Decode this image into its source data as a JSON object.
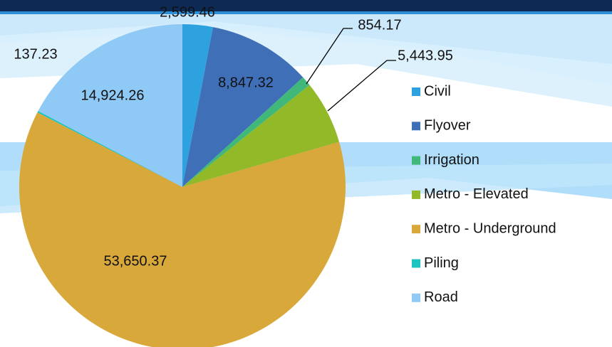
{
  "chart_data": {
    "type": "pie",
    "categories": [
      "Civil",
      "Flyover",
      "Irrigation",
      "Metro - Elevated",
      "Metro - Underground",
      "Piling",
      "Road"
    ],
    "values": [
      2599.46,
      8847.32,
      854.17,
      5443.95,
      53650.37,
      137.23,
      14924.26
    ],
    "value_labels": [
      "2,599.46",
      "8,847.32",
      "854.17",
      "5,443.95",
      "53,650.37",
      "137.23",
      "14,924.26"
    ],
    "colors": [
      "#2ea2df",
      "#3e6fb7",
      "#3fb87a",
      "#92b927",
      "#d8a83b",
      "#1cc3c0",
      "#8fcaf6"
    ],
    "legend": "right"
  }
}
